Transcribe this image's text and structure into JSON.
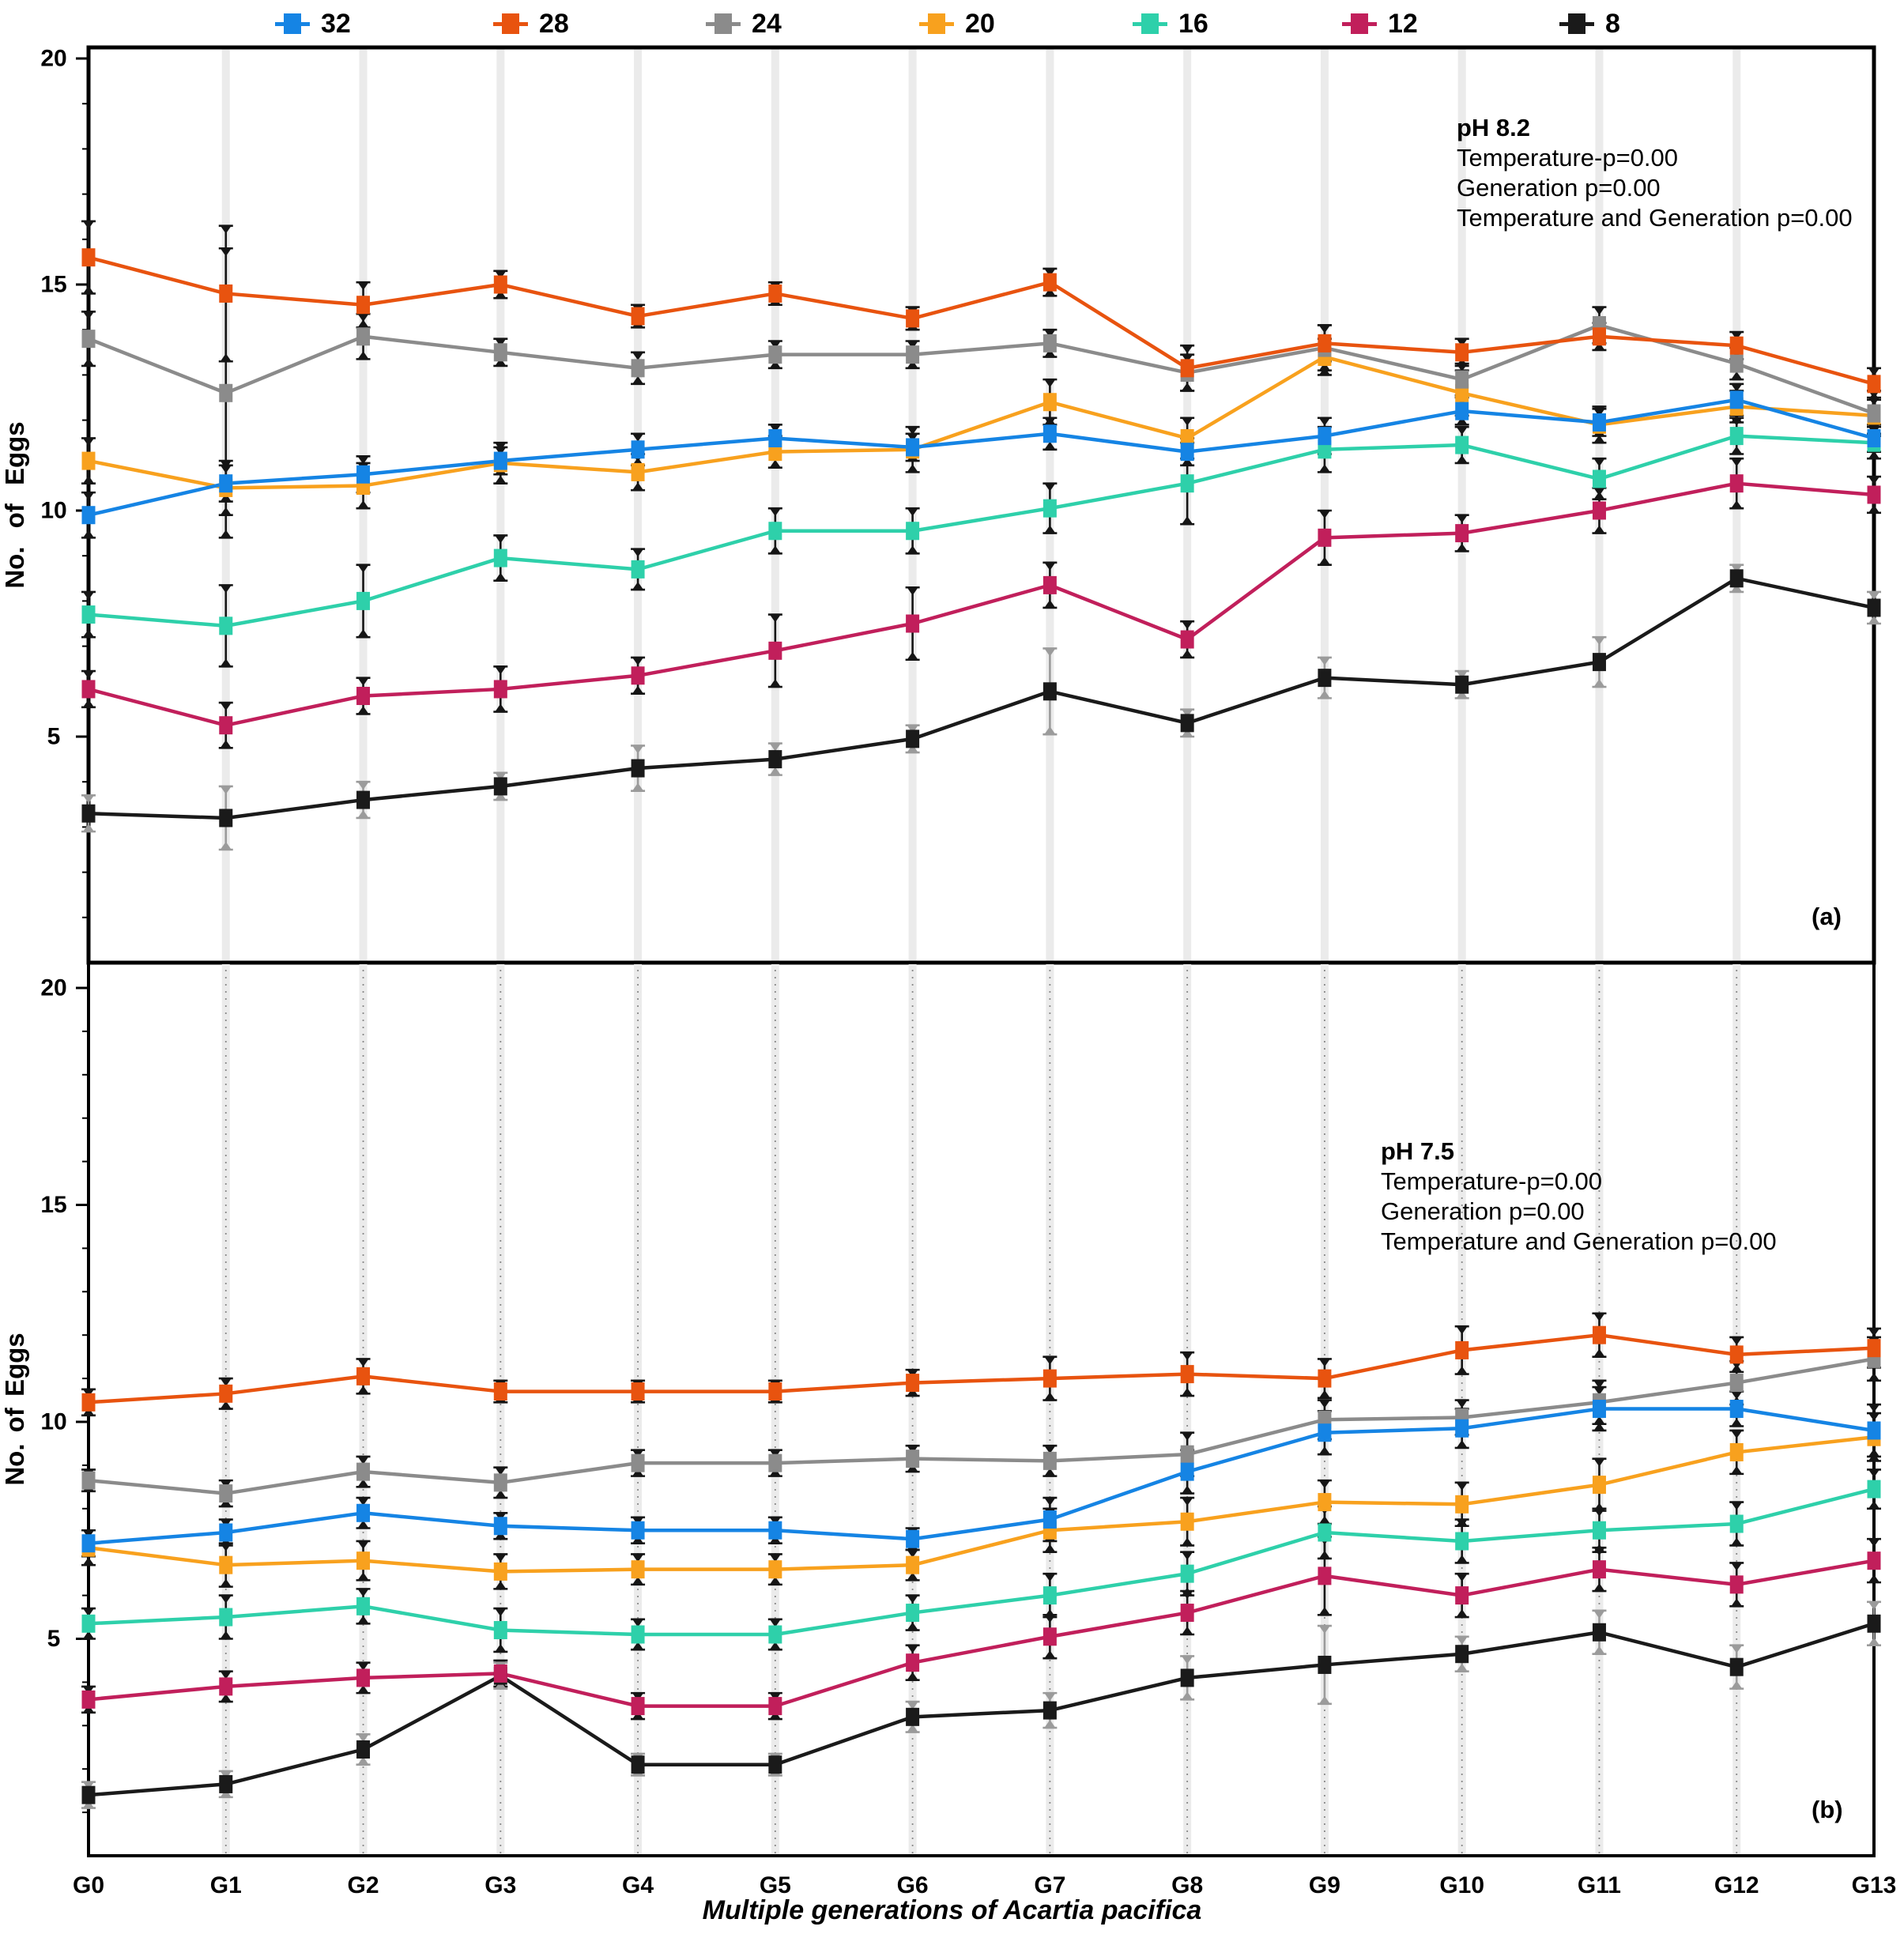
{
  "figure": {
    "x_axis_title": "Multiple generations of Acartia pacifica",
    "y_axis_title": "No. of Eggs",
    "panel_a_label": "(a)",
    "panel_b_label": "(b)"
  },
  "legend": [
    {
      "label": "32",
      "color": "#1584e4"
    },
    {
      "label": "28",
      "color": "#e8530f"
    },
    {
      "label": "24",
      "color": "#8b8b8b"
    },
    {
      "label": "20",
      "color": "#f8a11e"
    },
    {
      "label": "16",
      "color": "#2ed0aa"
    },
    {
      "label": "12",
      "color": "#c11f5b"
    },
    {
      "label": "8",
      "color": "#1a1a1a"
    }
  ],
  "chart_data": [
    {
      "type": "line",
      "panel": "a",
      "annotation": [
        "pH 8.2",
        "Temperature-p=0.00",
        "Generation p=0.00",
        "Temperature and Generation p=0.00"
      ],
      "corner_label": "(a)",
      "ylabel": "No. of Eggs",
      "ylim": [
        0,
        20
      ],
      "yticks": [
        5,
        10,
        15,
        20
      ],
      "grid": "vertical-bands",
      "categories": [
        "G0",
        "G1",
        "G2",
        "G3",
        "G4",
        "G5",
        "G6",
        "G7",
        "G8",
        "G9",
        "G10",
        "G11",
        "G12",
        "G13"
      ],
      "series": [
        {
          "name": "32",
          "color": "#1584e4",
          "err_color": "#151515",
          "values": [
            9.9,
            10.6,
            10.8,
            11.1,
            11.35,
            11.6,
            11.4,
            11.7,
            11.3,
            11.65,
            12.2,
            11.95,
            12.45,
            11.6
          ],
          "err": [
            0.5,
            0.4,
            0.4,
            0.3,
            0.35,
            0.3,
            0.3,
            0.35,
            0.3,
            0.4,
            0.3,
            0.3,
            0.35,
            0.3
          ]
        },
        {
          "name": "28",
          "color": "#e8530f",
          "err_color": "#151515",
          "values": [
            15.6,
            14.8,
            14.55,
            15.0,
            14.3,
            14.8,
            14.25,
            15.05,
            13.15,
            13.7,
            13.5,
            13.85,
            13.65,
            12.8
          ],
          "err": [
            0.8,
            1.5,
            0.5,
            0.3,
            0.25,
            0.25,
            0.25,
            0.3,
            0.5,
            0.4,
            0.3,
            0.3,
            0.3,
            0.35
          ]
        },
        {
          "name": "24",
          "color": "#8b8b8b",
          "err_color": "#151515",
          "values": [
            13.8,
            12.6,
            13.85,
            13.5,
            13.15,
            13.45,
            13.45,
            13.7,
            13.05,
            13.6,
            12.9,
            14.1,
            13.25,
            12.15
          ],
          "err": [
            0.6,
            3.2,
            0.5,
            0.3,
            0.35,
            0.3,
            0.3,
            0.3,
            0.4,
            0.5,
            0.35,
            0.4,
            0.35,
            0.5
          ]
        },
        {
          "name": "20",
          "color": "#f8a11e",
          "err_color": "#151515",
          "values": [
            11.1,
            10.5,
            10.55,
            11.05,
            10.85,
            11.3,
            11.35,
            12.4,
            11.6,
            13.4,
            12.6,
            11.9,
            12.3,
            12.1
          ],
          "err": [
            0.5,
            0.6,
            0.5,
            0.45,
            0.4,
            0.35,
            0.5,
            0.5,
            0.45,
            0.4,
            0.5,
            0.4,
            0.35,
            0.4
          ]
        },
        {
          "name": "16",
          "color": "#2ed0aa",
          "err_color": "#151515",
          "values": [
            7.7,
            7.45,
            8.0,
            8.95,
            8.7,
            9.55,
            9.55,
            10.05,
            10.6,
            11.35,
            11.45,
            10.7,
            11.65,
            11.5
          ],
          "err": [
            0.5,
            0.9,
            0.8,
            0.5,
            0.45,
            0.5,
            0.5,
            0.55,
            0.9,
            0.5,
            0.4,
            0.45,
            0.4,
            0.35
          ]
        },
        {
          "name": "12",
          "color": "#c11f5b",
          "err_color": "#151515",
          "values": [
            6.05,
            5.25,
            5.9,
            6.05,
            6.35,
            6.9,
            7.5,
            8.35,
            7.15,
            9.4,
            9.5,
            10.0,
            10.6,
            10.35
          ],
          "err": [
            0.4,
            0.5,
            0.4,
            0.5,
            0.4,
            0.8,
            0.8,
            0.5,
            0.4,
            0.6,
            0.4,
            0.5,
            0.55,
            0.4
          ]
        },
        {
          "name": "8",
          "color": "#1a1a1a",
          "err_color": "#9b9b9b",
          "values": [
            3.3,
            3.2,
            3.6,
            3.9,
            4.3,
            4.5,
            4.95,
            6.0,
            5.3,
            6.3,
            6.15,
            6.65,
            8.5,
            7.85
          ],
          "err": [
            0.4,
            0.7,
            0.4,
            0.3,
            0.5,
            0.35,
            0.3,
            0.95,
            0.3,
            0.45,
            0.3,
            0.55,
            0.3,
            0.35
          ]
        }
      ]
    },
    {
      "type": "line",
      "panel": "b",
      "annotation": [
        "pH 7.5",
        "Temperature-p=0.00",
        "Generation p=0.00",
        "Temperature and Generation p=0.00"
      ],
      "corner_label": "(b)",
      "ylabel": "No. of Eggs",
      "ylim": [
        0,
        20
      ],
      "yticks": [
        5,
        10,
        15,
        20
      ],
      "grid": "vertical-bands-dotted",
      "categories": [
        "G0",
        "G1",
        "G2",
        "G3",
        "G4",
        "G5",
        "G6",
        "G7",
        "G8",
        "G9",
        "G10",
        "G11",
        "G12",
        "G13"
      ],
      "series": [
        {
          "name": "32",
          "color": "#1584e4",
          "err_color": "#151515",
          "values": [
            7.2,
            7.45,
            7.9,
            7.6,
            7.5,
            7.5,
            7.3,
            7.75,
            8.85,
            9.75,
            9.85,
            10.3,
            10.3,
            9.8
          ],
          "err": [
            0.3,
            0.3,
            0.35,
            0.3,
            0.3,
            0.3,
            0.25,
            0.5,
            0.5,
            0.5,
            0.45,
            0.5,
            0.4,
            0.6
          ]
        },
        {
          "name": "28",
          "color": "#e8530f",
          "err_color": "#151515",
          "values": [
            10.45,
            10.65,
            11.05,
            10.7,
            10.7,
            10.7,
            10.9,
            11.0,
            11.1,
            11.0,
            11.65,
            12.0,
            11.55,
            11.7
          ],
          "err": [
            0.3,
            0.35,
            0.4,
            0.25,
            0.25,
            0.25,
            0.3,
            0.5,
            0.5,
            0.45,
            0.55,
            0.5,
            0.4,
            0.45
          ]
        },
        {
          "name": "24",
          "color": "#8b8b8b",
          "err_color": "#151515",
          "values": [
            8.65,
            8.35,
            8.85,
            8.6,
            9.05,
            9.05,
            9.15,
            9.1,
            9.25,
            10.05,
            10.1,
            10.45,
            10.9,
            11.45
          ],
          "err": [
            0.25,
            0.3,
            0.35,
            0.35,
            0.3,
            0.3,
            0.3,
            0.35,
            0.5,
            0.45,
            0.4,
            0.5,
            0.5,
            0.5
          ]
        },
        {
          "name": "20",
          "color": "#f8a11e",
          "err_color": "#151515",
          "values": [
            7.1,
            6.7,
            6.8,
            6.55,
            6.6,
            6.6,
            6.7,
            7.5,
            7.7,
            8.15,
            8.1,
            8.55,
            9.3,
            9.65
          ],
          "err": [
            0.4,
            0.5,
            0.45,
            0.4,
            0.35,
            0.35,
            0.35,
            0.5,
            0.55,
            0.5,
            0.5,
            0.6,
            0.5,
            0.55
          ]
        },
        {
          "name": "16",
          "color": "#2ed0aa",
          "err_color": "#151515",
          "values": [
            5.35,
            5.5,
            5.75,
            5.2,
            5.1,
            5.1,
            5.6,
            6.0,
            6.5,
            7.45,
            7.25,
            7.5,
            7.65,
            8.45
          ],
          "err": [
            0.35,
            0.5,
            0.4,
            0.5,
            0.35,
            0.35,
            0.4,
            0.5,
            0.5,
            0.6,
            0.5,
            0.5,
            0.5,
            0.45
          ]
        },
        {
          "name": "12",
          "color": "#c11f5b",
          "err_color": "#151515",
          "values": [
            3.6,
            3.9,
            4.1,
            4.2,
            3.45,
            3.45,
            4.45,
            5.05,
            5.6,
            6.45,
            6.0,
            6.6,
            6.25,
            6.8
          ],
          "err": [
            0.3,
            0.35,
            0.35,
            0.3,
            0.3,
            0.3,
            0.4,
            0.5,
            0.5,
            0.9,
            0.5,
            0.5,
            0.5,
            0.5
          ]
        },
        {
          "name": "8",
          "color": "#1a1a1a",
          "err_color": "#9b9b9b",
          "values": [
            1.4,
            1.65,
            2.45,
            4.15,
            2.1,
            2.1,
            3.2,
            3.35,
            4.1,
            4.4,
            4.65,
            5.15,
            4.35,
            5.35
          ],
          "err": [
            0.3,
            0.3,
            0.35,
            0.3,
            0.25,
            0.25,
            0.35,
            0.4,
            0.5,
            0.9,
            0.4,
            0.5,
            0.5,
            0.5
          ]
        }
      ]
    }
  ]
}
